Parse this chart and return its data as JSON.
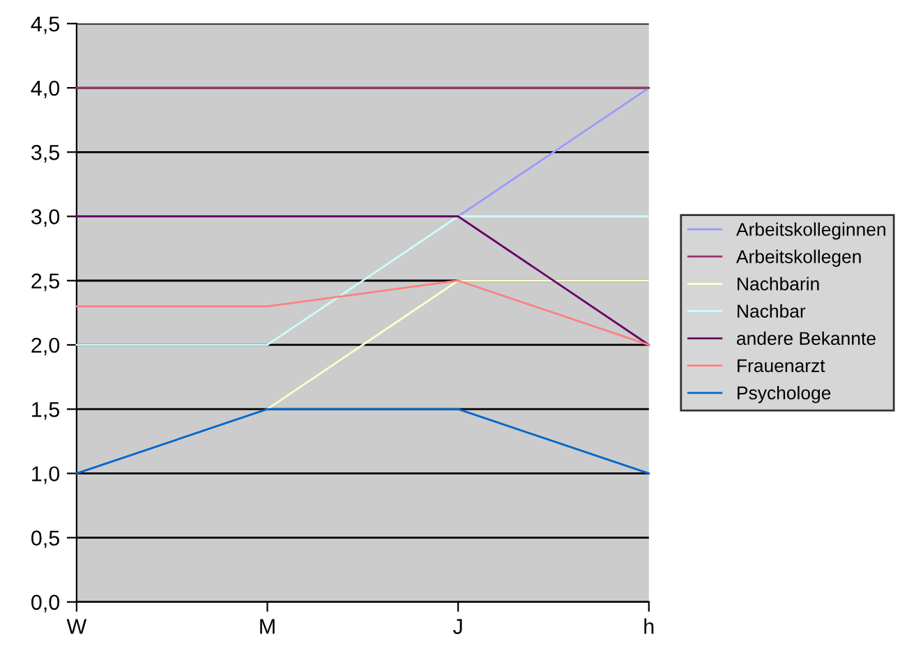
{
  "chart_data": {
    "type": "line",
    "categories": [
      "W",
      "M",
      "J",
      "h"
    ],
    "series": [
      {
        "name": "Arbeitskolleginnen",
        "color": "#9999ff",
        "values": [
          null,
          null,
          3,
          4
        ]
      },
      {
        "name": "Arbeitskollegen",
        "color": "#993366",
        "values": [
          4,
          4,
          4,
          4
        ]
      },
      {
        "name": "Nachbarin",
        "color": "#ffffcc",
        "values": [
          null,
          1.5,
          2.5,
          2.5
        ]
      },
      {
        "name": "Nachbar",
        "color": "#ccffff",
        "values": [
          2,
          2,
          3,
          3
        ]
      },
      {
        "name": "andere Bekannte",
        "color": "#660066",
        "values": [
          3,
          3,
          3,
          2
        ]
      },
      {
        "name": "Frauenarzt",
        "color": "#ff8080",
        "values": [
          2.3,
          2.3,
          2.5,
          2
        ]
      },
      {
        "name": "Psychologe",
        "color": "#0066cc",
        "values": [
          1,
          1.5,
          1.5,
          1
        ]
      }
    ],
    "ylim": [
      0,
      4.5
    ],
    "yticks": [
      {
        "value": 0,
        "label": "0,0"
      },
      {
        "value": 0.5,
        "label": "0,5"
      },
      {
        "value": 1,
        "label": "1,0"
      },
      {
        "value": 1.5,
        "label": "1,5"
      },
      {
        "value": 2,
        "label": "2,0"
      },
      {
        "value": 2.5,
        "label": "2,5"
      },
      {
        "value": 3,
        "label": "3,0"
      },
      {
        "value": 3.5,
        "label": "3,5"
      },
      {
        "value": 4,
        "label": "4,0"
      },
      {
        "value": 4.5,
        "label": "4,5"
      }
    ],
    "grid": "y",
    "legend": "right",
    "marker": "none",
    "line_style": "solid"
  }
}
